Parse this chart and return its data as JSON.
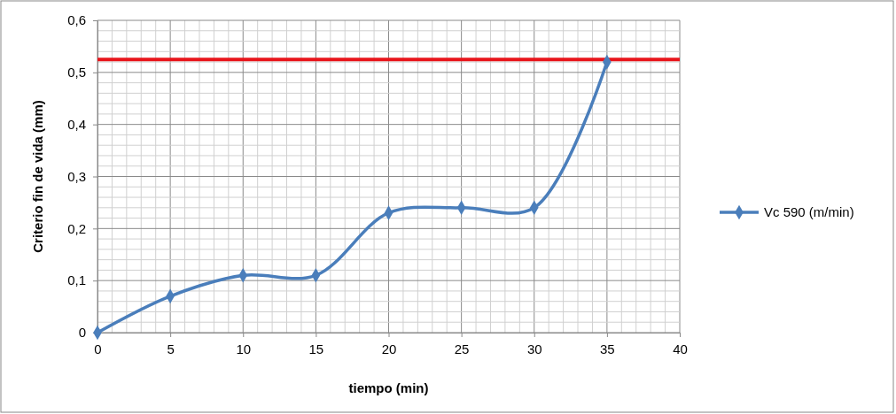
{
  "chart_data": {
    "type": "line",
    "xlabel": "tiempo (min)",
    "ylabel": "Criterio fin de vida (mm)",
    "x": [
      0,
      5,
      10,
      15,
      20,
      25,
      30,
      35
    ],
    "series": [
      {
        "name": "Vc 590 (m/min)",
        "color": "#4a7ebb",
        "values": [
          0,
          0.07,
          0.11,
          0.11,
          0.23,
          0.24,
          0.24,
          0.52
        ]
      }
    ],
    "xlim": [
      0,
      40
    ],
    "xticks": [
      0,
      5,
      10,
      15,
      20,
      25,
      30,
      35,
      40
    ],
    "ylim": [
      0,
      0.6
    ],
    "yticks": [
      0,
      {
        "value": 0.1,
        "label": "0,1"
      },
      {
        "value": 0.2,
        "label": "0,2"
      },
      {
        "value": 0.3,
        "label": "0,3"
      },
      {
        "value": 0.4,
        "label": "0,4"
      },
      {
        "value": 0.5,
        "label": "0,5"
      },
      {
        "value": 0.6,
        "label": "0,6"
      }
    ],
    "ref_lines": [
      {
        "axis": "y",
        "value": 0.525,
        "label": null,
        "color": "#e8151b"
      }
    ],
    "grid": true,
    "legend": "right",
    "marker": "diamond",
    "line_style": "solid"
  }
}
